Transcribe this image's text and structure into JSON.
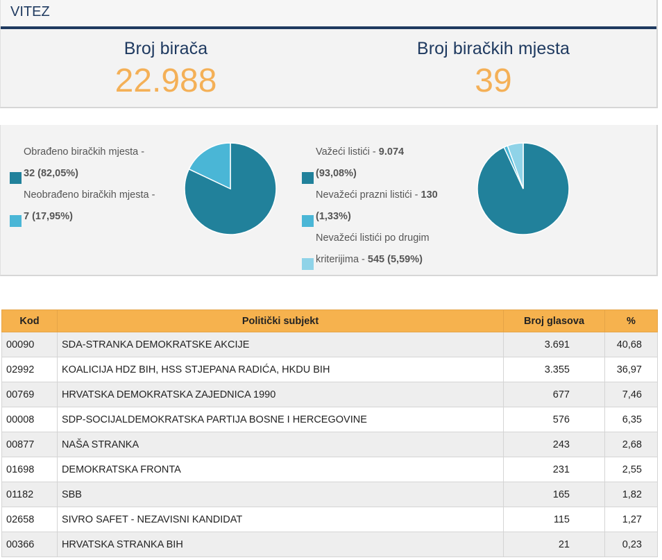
{
  "header": {
    "title": "VITEZ",
    "voters_label": "Broj birača",
    "voters_value": "22.988",
    "stations_label": "Broj biračkih mjesta",
    "stations_value": "39"
  },
  "colors": {
    "navy": "#1f3a60",
    "orange": "#f4b057",
    "teal_dark": "#21819b",
    "teal_light": "#4ab6d6",
    "teal_pale": "#8fd3e8"
  },
  "stations_legend": [
    {
      "label": "Obrađeno biračkih mjesta - ",
      "value": "32 (82,05%)",
      "color": "#21819b"
    },
    {
      "label": "Neobrađeno biračkih mjesta - ",
      "value": "7 (17,95%)",
      "color": "#4ab6d6"
    }
  ],
  "ballots_legend": [
    {
      "label": "Važeći listići - ",
      "value": "9.074",
      "pct": "(93,08%)",
      "color": "#21819b"
    },
    {
      "label": "Nevažeći prazni listići - ",
      "value": "130",
      "pct": "(1,33%)",
      "color": "#4ab6d6"
    },
    {
      "label_line1": "Nevažeći listići po drugim",
      "label_line2": "kriterijima - ",
      "value": "545 (5,59%)",
      "color": "#8fd3e8"
    }
  ],
  "chart_data": [
    {
      "type": "pie",
      "categories": [
        "Obrađeno biračkih mjesta",
        "Neobrađeno biračkih mjesta"
      ],
      "values": [
        82.05,
        17.95
      ],
      "colors": [
        "#21819b",
        "#4ab6d6"
      ]
    },
    {
      "type": "pie",
      "categories": [
        "Važeći listići",
        "Nevažeći prazni listići",
        "Nevažeći listići po drugim kriterijima"
      ],
      "values": [
        93.08,
        1.33,
        5.59
      ],
      "colors": [
        "#21819b",
        "#4ab6d6",
        "#8fd3e8"
      ]
    }
  ],
  "table": {
    "headers": [
      "Kod",
      "Politički subjekt",
      "Broj glasova",
      "%"
    ],
    "rows": [
      [
        "00090",
        "SDA-STRANKA DEMOKRATSKE AKCIJE",
        "3.691",
        "40,68"
      ],
      [
        "02992",
        "KOALICIJA HDZ BIH, HSS STJEPANA RADIĆA, HKDU BIH",
        "3.355",
        "36,97"
      ],
      [
        "00769",
        "HRVATSKA DEMOKRATSKA ZAJEDNICA 1990",
        "677",
        "7,46"
      ],
      [
        "00008",
        "SDP-SOCIJALDEMOKRATSKA PARTIJA BOSNE I HERCEGOVINE",
        "576",
        "6,35"
      ],
      [
        "00877",
        "NAŠA STRANKA",
        "243",
        "2,68"
      ],
      [
        "01698",
        "DEMOKRATSKA FRONTA",
        "231",
        "2,55"
      ],
      [
        "01182",
        "SBB",
        "165",
        "1,82"
      ],
      [
        "02658",
        "SIVRO SAFET - NEZAVISNI KANDIDAT",
        "115",
        "1,27"
      ],
      [
        "00366",
        "HRVATSKA STRANKA BIH",
        "21",
        "0,23"
      ]
    ]
  }
}
